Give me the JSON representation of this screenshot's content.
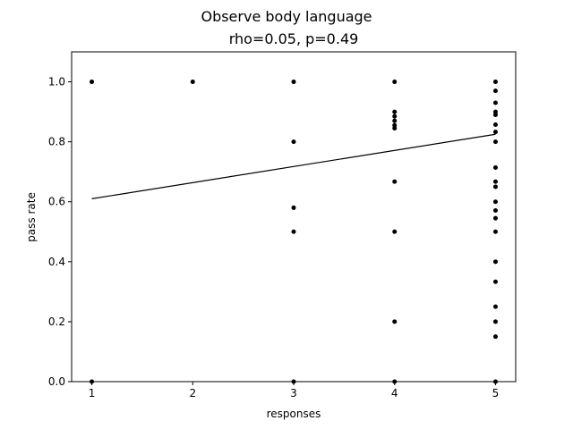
{
  "chart_data": {
    "type": "scatter",
    "title": "Observe body language",
    "subtitle": "rho=0.05, p=0.49",
    "xlabel": "responses",
    "ylabel": "pass rate",
    "xlim": [
      0.8,
      5.2
    ],
    "ylim": [
      0.0,
      1.1
    ],
    "x_ticks": [
      "1",
      "2",
      "3",
      "4",
      "5"
    ],
    "y_ticks": [
      "0.0",
      "0.2",
      "0.4",
      "0.6",
      "0.8",
      "1.0"
    ],
    "grid": false,
    "marker_color": "#000000",
    "points": [
      [
        1,
        1.0
      ],
      [
        1,
        0.0
      ],
      [
        2,
        1.0
      ],
      [
        3,
        1.0
      ],
      [
        3,
        0.8
      ],
      [
        3,
        0.58
      ],
      [
        3,
        0.5
      ],
      [
        3,
        0.0
      ],
      [
        4,
        1.0
      ],
      [
        4,
        0.9
      ],
      [
        4,
        0.885
      ],
      [
        4,
        0.87
      ],
      [
        4,
        0.855
      ],
      [
        4,
        0.845
      ],
      [
        4,
        0.667
      ],
      [
        4,
        0.5
      ],
      [
        4,
        0.2
      ],
      [
        4,
        0.0
      ],
      [
        5,
        1.0
      ],
      [
        5,
        0.97
      ],
      [
        5,
        0.93
      ],
      [
        5,
        0.9
      ],
      [
        5,
        0.89
      ],
      [
        5,
        0.857
      ],
      [
        5,
        0.833
      ],
      [
        5,
        0.8
      ],
      [
        5,
        0.714
      ],
      [
        5,
        0.667
      ],
      [
        5,
        0.65
      ],
      [
        5,
        0.6
      ],
      [
        5,
        0.571
      ],
      [
        5,
        0.545
      ],
      [
        5,
        0.5
      ],
      [
        5,
        0.4
      ],
      [
        5,
        0.333
      ],
      [
        5,
        0.25
      ],
      [
        5,
        0.2
      ],
      [
        5,
        0.15
      ],
      [
        5,
        0.0
      ]
    ],
    "trend_line": {
      "x": [
        1,
        5
      ],
      "y": [
        0.61,
        0.825
      ],
      "color": "#000000"
    }
  }
}
